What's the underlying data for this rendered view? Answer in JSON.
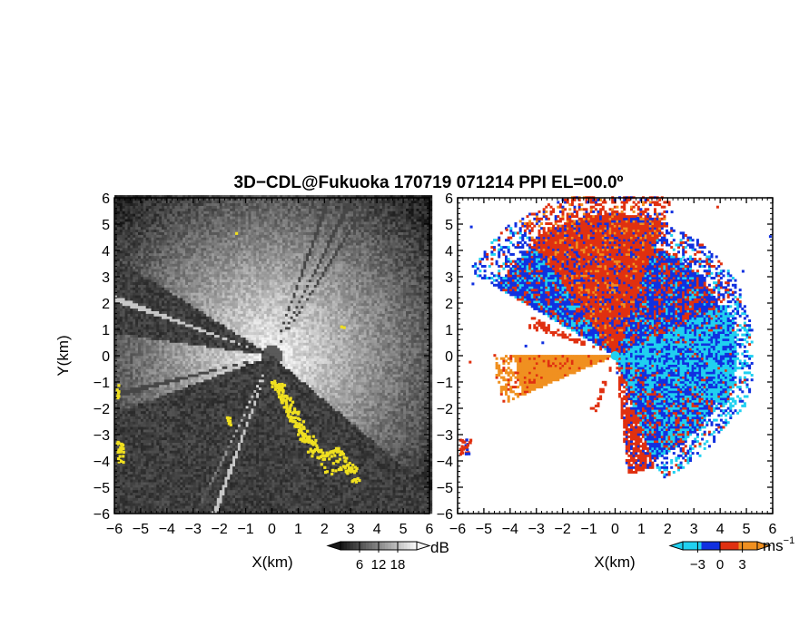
{
  "title": "3D−CDL@Fukuoka 170719 071214 PPI EL=00.0º",
  "chart_data": [
    {
      "type": "heatmap",
      "panel": "left",
      "quantity": "backscatter intensity",
      "xlabel": "X(km)",
      "ylabel": "Y(km)",
      "xlim": [
        -6,
        6
      ],
      "ylim": [
        -6,
        6
      ],
      "xticks": [
        "−6",
        "−5",
        "−4",
        "−3",
        "−2",
        "−1",
        "0",
        "1",
        "2",
        "3",
        "4",
        "5",
        "6"
      ],
      "yticks": [
        "−6",
        "−5",
        "−4",
        "−3",
        "−2",
        "−1",
        "0",
        "1",
        "2",
        "3",
        "4",
        "5",
        "6"
      ],
      "colorbar": {
        "unit": "dB",
        "ticks": [
          "6",
          "12",
          "18"
        ],
        "values": [
          6,
          12,
          18
        ],
        "range": [
          0,
          24
        ],
        "colormap": "grayscale"
      },
      "highlight_color": "#f0e020",
      "highlight_note": "yellow pixels"
    },
    {
      "type": "heatmap",
      "panel": "right",
      "quantity": "radial velocity",
      "xlabel": "X(km)",
      "xlim": [
        -6,
        6
      ],
      "ylim": [
        -6,
        6
      ],
      "xticks": [
        "−6",
        "−5",
        "−4",
        "−3",
        "−2",
        "−1",
        "0",
        "1",
        "2",
        "3",
        "4",
        "5",
        "6"
      ],
      "yticks": [
        "−6",
        "−5",
        "−4",
        "−3",
        "−2",
        "−1",
        "0",
        "1",
        "2",
        "3",
        "4",
        "5",
        "6"
      ],
      "colorbar": {
        "unit": "ms−1",
        "ticks": [
          "−3",
          "0",
          "3"
        ],
        "values": [
          -3,
          0,
          3
        ],
        "range": [
          -5,
          5
        ],
        "colormap": "cyan-blue-red-orange"
      },
      "colors": {
        "negative_light": "#20d0f0",
        "negative": "#1030e0",
        "positive": "#e03010",
        "positive_light": "#f09020"
      }
    }
  ]
}
